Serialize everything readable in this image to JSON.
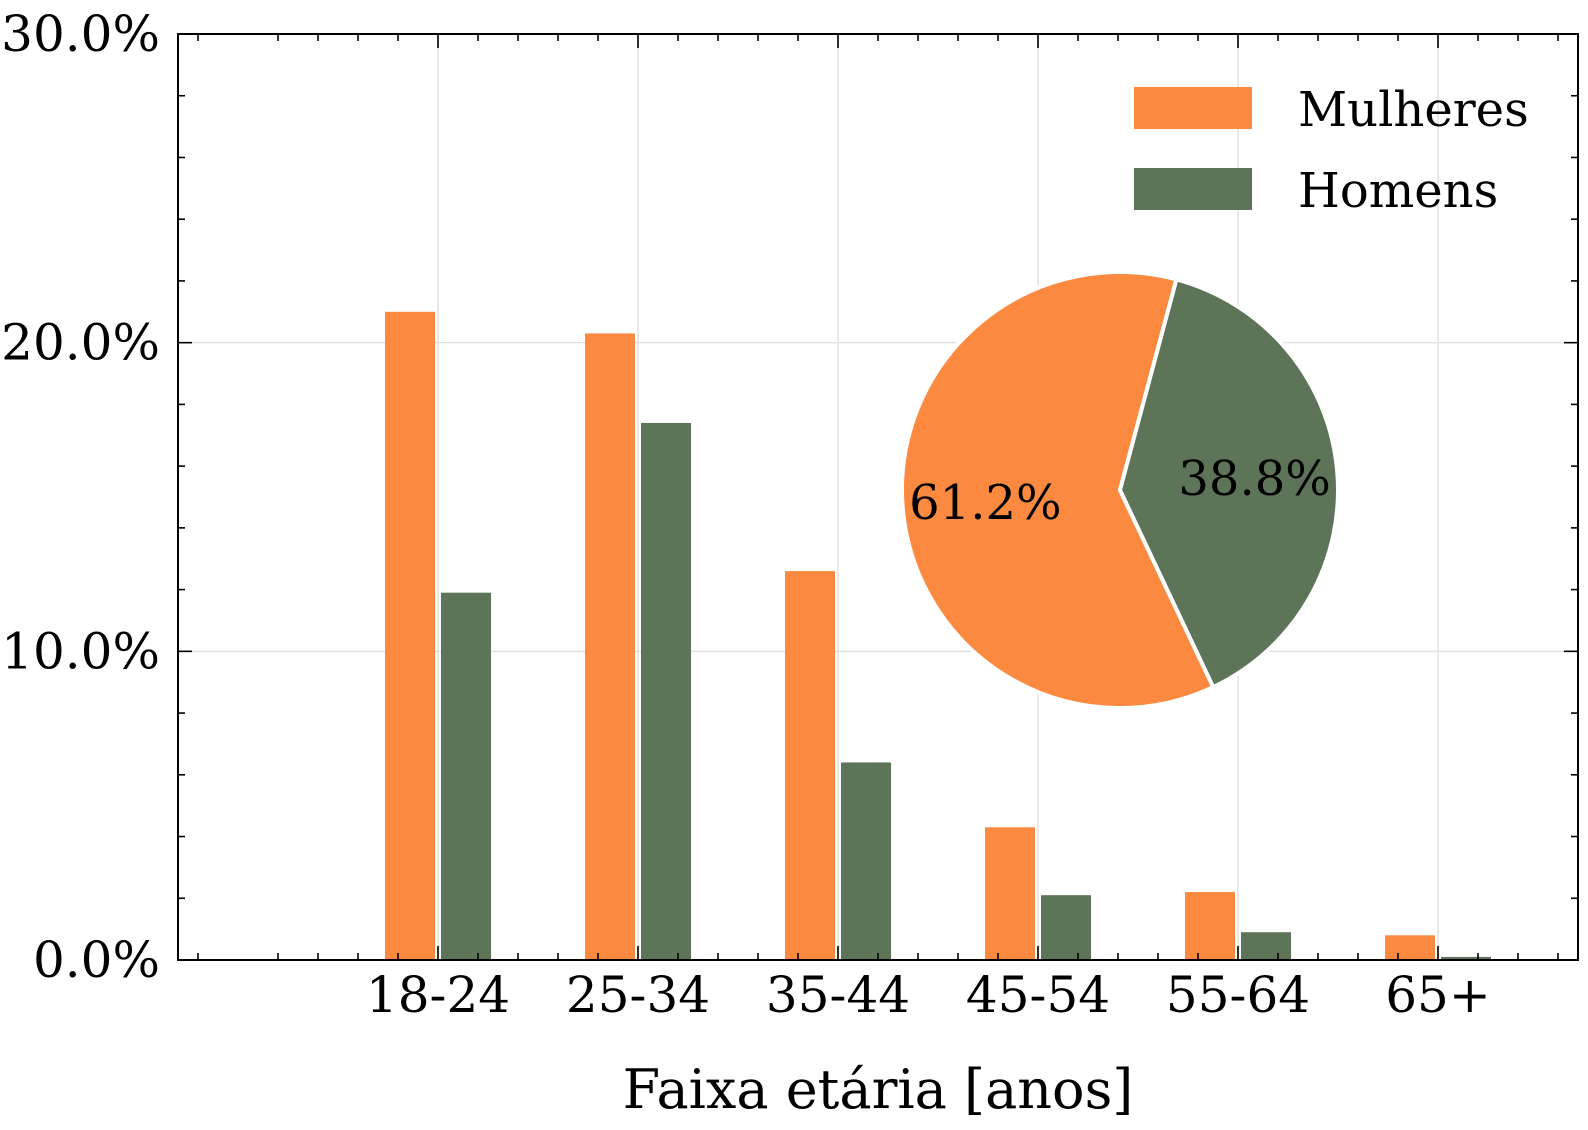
{
  "chart_data": [
    {
      "type": "bar",
      "categories": [
        "18-24",
        "25-34",
        "35-44",
        "45-54",
        "55-64",
        "65+"
      ],
      "series": [
        {
          "name": "Mulheres",
          "color": "#fb8a40",
          "values": [
            21.0,
            20.3,
            12.6,
            4.3,
            2.2,
            0.8
          ]
        },
        {
          "name": "Homens",
          "color": "#5d7458",
          "values": [
            11.9,
            17.4,
            6.4,
            2.1,
            0.9,
            0.1
          ]
        }
      ],
      "xlabel": "Faixa etária [anos]",
      "ylabel": "",
      "ylim": [
        0,
        30
      ],
      "yticks": [
        0,
        10,
        20,
        30
      ],
      "ytick_labels": [
        "0.0%",
        "10.0%",
        "20.0%",
        "30.0%"
      ],
      "grid": true,
      "legend_position": "top-right"
    },
    {
      "type": "pie",
      "labels": [
        "Mulheres",
        "Homens"
      ],
      "values": [
        61.2,
        38.8
      ],
      "value_labels": [
        "61.2%",
        "38.8%"
      ],
      "colors": [
        "#fb8a40",
        "#5d7458"
      ],
      "start_angle_deg": 75,
      "placement": "inset right of center"
    }
  ]
}
